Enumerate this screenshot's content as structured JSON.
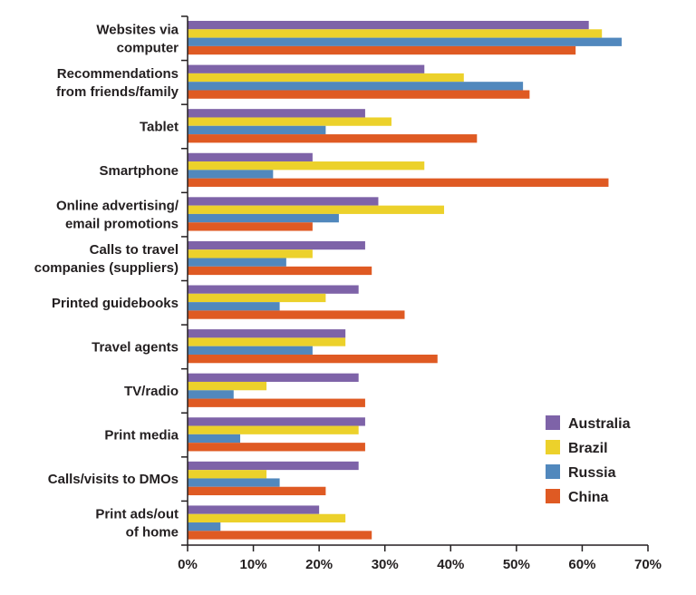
{
  "chart_data": {
    "type": "bar",
    "orientation": "horizontal",
    "categories": [
      [
        "Websites via",
        "computer"
      ],
      [
        "Recommendations",
        "from friends/family"
      ],
      [
        "Tablet"
      ],
      [
        "Smartphone"
      ],
      [
        "Online advertising/",
        "email promotions"
      ],
      [
        "Calls to travel",
        "companies (suppliers)"
      ],
      [
        "Printed guidebooks"
      ],
      [
        "Travel agents"
      ],
      [
        "TV/radio"
      ],
      [
        "Print media"
      ],
      [
        "Calls/visits to DMOs"
      ],
      [
        "Print ads/out",
        "of home"
      ]
    ],
    "series": [
      {
        "name": "Australia",
        "color": "#7e63a8",
        "values": [
          61,
          36,
          27,
          19,
          29,
          27,
          26,
          24,
          26,
          27,
          26,
          20
        ]
      },
      {
        "name": "Brazil",
        "color": "#ecd12b",
        "values": [
          63,
          42,
          31,
          36,
          39,
          19,
          21,
          24,
          12,
          26,
          12,
          24
        ]
      },
      {
        "name": "Russia",
        "color": "#5188bd",
        "values": [
          66,
          51,
          21,
          13,
          23,
          15,
          14,
          19,
          7,
          8,
          14,
          5
        ]
      },
      {
        "name": "China",
        "color": "#df5a23",
        "values": [
          59,
          52,
          44,
          64,
          19,
          28,
          33,
          38,
          27,
          27,
          21,
          28
        ]
      }
    ],
    "xlim": [
      0,
      70
    ],
    "xticks": [
      "0%",
      "10%",
      "20%",
      "30%",
      "40%",
      "50%",
      "60%",
      "70%"
    ],
    "legend_position": "bottom-right",
    "grid": false
  }
}
